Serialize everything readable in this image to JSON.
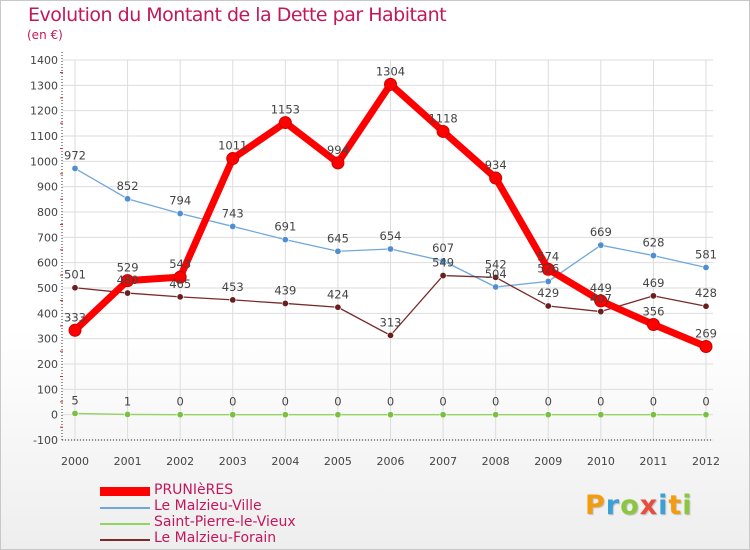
{
  "title": "Evolution du Montant de la Dette par Habitant",
  "unit": "(en €)",
  "chart_data": {
    "type": "line",
    "title": "Evolution du Montant de la Dette par Habitant",
    "ylabel": "(en €)",
    "xlabel": "",
    "x": [
      "2000",
      "2001",
      "2002",
      "2003",
      "2004",
      "2005",
      "2006",
      "2007",
      "2008",
      "2009",
      "2010",
      "2011",
      "2012"
    ],
    "ylim": [
      -100,
      1400
    ],
    "yticks": [
      -100,
      0,
      100,
      200,
      300,
      400,
      500,
      600,
      700,
      800,
      900,
      1000,
      1100,
      1200,
      1300,
      1400
    ],
    "grid": true,
    "legend_position": "bottom-left",
    "series": [
      {
        "name": "PRUNIèRES",
        "color": "#ff0000",
        "marker": "#ff0000",
        "values": [
          333,
          529,
          543,
          1011,
          1153,
          994,
          1304,
          1118,
          934,
          574,
          449,
          356,
          269
        ],
        "labels": [
          "333",
          "529",
          "543",
          "1011",
          "1153",
          "994",
          "1304",
          "1118",
          "934",
          "574",
          "449",
          "356",
          "269"
        ]
      },
      {
        "name": "Le Malzieu-Ville",
        "color": "#6fa8dc",
        "marker": "#4f8fd0",
        "values": [
          972,
          852,
          794,
          743,
          691,
          645,
          654,
          607,
          504,
          526,
          669,
          628,
          581
        ],
        "labels": [
          "972",
          "852",
          "794",
          "743",
          "691",
          "645",
          "654",
          "607",
          "504",
          "526",
          "669",
          "628",
          "581"
        ]
      },
      {
        "name": "Saint-Pierre-le-Vieux",
        "color": "#93d35f",
        "marker": "#7ac143",
        "values": [
          5,
          1,
          0,
          0,
          0,
          0,
          0,
          0,
          0,
          0,
          0,
          0,
          0
        ],
        "labels": [
          "5",
          "1",
          "0",
          "0",
          "0",
          "0",
          "0",
          "0",
          "0",
          "0",
          "0",
          "0",
          "0"
        ]
      },
      {
        "name": "Le Malzieu-Forain",
        "color": "#7a2a2a",
        "marker": "#6a1f1f",
        "values": [
          501,
          480,
          465,
          453,
          439,
          424,
          313,
          549,
          542,
          429,
          407,
          469,
          428
        ],
        "labels": [
          "501",
          "480",
          "465",
          "453",
          "439",
          "424",
          "313",
          "549",
          "542",
          "429",
          "407",
          "469",
          "428"
        ]
      }
    ]
  },
  "logo": {
    "letters": [
      "P",
      "r",
      "o",
      "x",
      "i",
      "t",
      "i"
    ],
    "colors": [
      "#f39c12",
      "#3aa0d8",
      "#8cc63f",
      "#e74c3c",
      "#3aa0d8",
      "#f39c12",
      "#8cc63f"
    ]
  }
}
